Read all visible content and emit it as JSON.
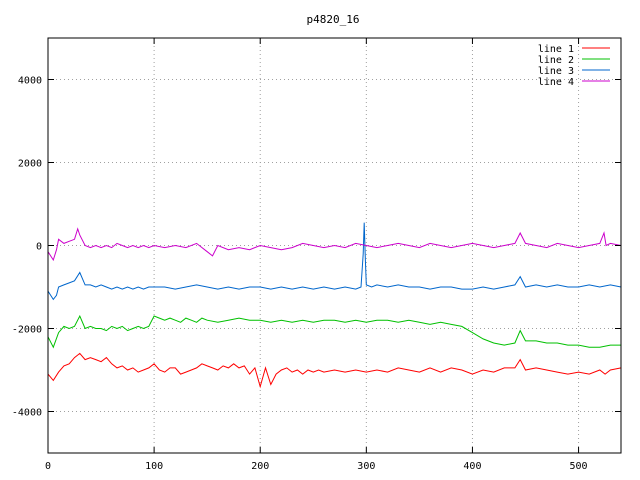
{
  "chart_data": {
    "type": "line",
    "title": "p4820_16",
    "xlabel": "",
    "ylabel": "",
    "xlim": [
      0,
      540
    ],
    "ylim": [
      -5000,
      5000
    ],
    "xticks": [
      0,
      100,
      200,
      300,
      400,
      500
    ],
    "yticks": [
      -4000,
      -2000,
      0,
      2000,
      4000
    ],
    "xtick_labels": [
      "0",
      "100",
      "200",
      "300",
      "400",
      "500"
    ],
    "ytick_labels": [
      "-4000",
      "-2000",
      "0",
      "2000",
      "4000"
    ],
    "grid": true,
    "legend": "top-right",
    "series": [
      {
        "name": "line 1",
        "color": "#ff0000",
        "points": [
          [
            0,
            -3100
          ],
          [
            5,
            -3250
          ],
          [
            10,
            -3050
          ],
          [
            15,
            -2900
          ],
          [
            20,
            -2850
          ],
          [
            25,
            -2700
          ],
          [
            30,
            -2600
          ],
          [
            35,
            -2750
          ],
          [
            40,
            -2700
          ],
          [
            45,
            -2750
          ],
          [
            50,
            -2800
          ],
          [
            55,
            -2700
          ],
          [
            60,
            -2850
          ],
          [
            65,
            -2950
          ],
          [
            70,
            -2900
          ],
          [
            75,
            -3000
          ],
          [
            80,
            -2950
          ],
          [
            85,
            -3050
          ],
          [
            90,
            -3000
          ],
          [
            95,
            -2950
          ],
          [
            100,
            -2850
          ],
          [
            105,
            -3000
          ],
          [
            110,
            -3050
          ],
          [
            115,
            -2950
          ],
          [
            120,
            -2950
          ],
          [
            125,
            -3100
          ],
          [
            130,
            -3050
          ],
          [
            135,
            -3000
          ],
          [
            140,
            -2950
          ],
          [
            145,
            -2850
          ],
          [
            150,
            -2900
          ],
          [
            155,
            -2950
          ],
          [
            160,
            -3000
          ],
          [
            165,
            -2900
          ],
          [
            170,
            -2950
          ],
          [
            175,
            -2850
          ],
          [
            180,
            -2950
          ],
          [
            185,
            -2900
          ],
          [
            190,
            -3100
          ],
          [
            195,
            -2950
          ],
          [
            200,
            -3400
          ],
          [
            205,
            -2950
          ],
          [
            210,
            -3350
          ],
          [
            215,
            -3100
          ],
          [
            220,
            -3000
          ],
          [
            225,
            -2950
          ],
          [
            230,
            -3050
          ],
          [
            235,
            -3000
          ],
          [
            240,
            -3100
          ],
          [
            245,
            -3000
          ],
          [
            250,
            -3050
          ],
          [
            255,
            -3000
          ],
          [
            260,
            -3050
          ],
          [
            270,
            -3000
          ],
          [
            280,
            -3050
          ],
          [
            290,
            -3000
          ],
          [
            300,
            -3050
          ],
          [
            310,
            -3000
          ],
          [
            320,
            -3050
          ],
          [
            330,
            -2950
          ],
          [
            340,
            -3000
          ],
          [
            350,
            -3050
          ],
          [
            360,
            -2950
          ],
          [
            370,
            -3050
          ],
          [
            380,
            -2950
          ],
          [
            390,
            -3000
          ],
          [
            400,
            -3100
          ],
          [
            410,
            -3000
          ],
          [
            420,
            -3050
          ],
          [
            430,
            -2950
          ],
          [
            440,
            -2950
          ],
          [
            445,
            -2750
          ],
          [
            450,
            -3000
          ],
          [
            460,
            -2950
          ],
          [
            470,
            -3000
          ],
          [
            480,
            -3050
          ],
          [
            490,
            -3100
          ],
          [
            500,
            -3050
          ],
          [
            510,
            -3100
          ],
          [
            520,
            -3000
          ],
          [
            525,
            -3100
          ],
          [
            530,
            -3000
          ],
          [
            540,
            -2950
          ]
        ]
      },
      {
        "name": "line 2",
        "color": "#00c000",
        "points": [
          [
            0,
            -2200
          ],
          [
            5,
            -2450
          ],
          [
            10,
            -2100
          ],
          [
            15,
            -1950
          ],
          [
            20,
            -2000
          ],
          [
            25,
            -1950
          ],
          [
            30,
            -1700
          ],
          [
            35,
            -2000
          ],
          [
            40,
            -1950
          ],
          [
            45,
            -2000
          ],
          [
            50,
            -2000
          ],
          [
            55,
            -2050
          ],
          [
            60,
            -1950
          ],
          [
            65,
            -2000
          ],
          [
            70,
            -1950
          ],
          [
            75,
            -2050
          ],
          [
            80,
            -2000
          ],
          [
            85,
            -1950
          ],
          [
            90,
            -2000
          ],
          [
            95,
            -1950
          ],
          [
            100,
            -1700
          ],
          [
            105,
            -1750
          ],
          [
            110,
            -1800
          ],
          [
            115,
            -1750
          ],
          [
            120,
            -1800
          ],
          [
            125,
            -1850
          ],
          [
            130,
            -1750
          ],
          [
            135,
            -1800
          ],
          [
            140,
            -1850
          ],
          [
            145,
            -1750
          ],
          [
            150,
            -1800
          ],
          [
            160,
            -1850
          ],
          [
            170,
            -1800
          ],
          [
            180,
            -1750
          ],
          [
            190,
            -1800
          ],
          [
            200,
            -1800
          ],
          [
            210,
            -1850
          ],
          [
            220,
            -1800
          ],
          [
            230,
            -1850
          ],
          [
            240,
            -1800
          ],
          [
            250,
            -1850
          ],
          [
            260,
            -1800
          ],
          [
            270,
            -1800
          ],
          [
            280,
            -1850
          ],
          [
            290,
            -1800
          ],
          [
            300,
            -1850
          ],
          [
            310,
            -1800
          ],
          [
            320,
            -1800
          ],
          [
            330,
            -1850
          ],
          [
            340,
            -1800
          ],
          [
            350,
            -1850
          ],
          [
            360,
            -1900
          ],
          [
            370,
            -1850
          ],
          [
            380,
            -1900
          ],
          [
            390,
            -1950
          ],
          [
            400,
            -2100
          ],
          [
            410,
            -2250
          ],
          [
            420,
            -2350
          ],
          [
            430,
            -2400
          ],
          [
            440,
            -2350
          ],
          [
            445,
            -2050
          ],
          [
            450,
            -2300
          ],
          [
            460,
            -2300
          ],
          [
            470,
            -2350
          ],
          [
            480,
            -2350
          ],
          [
            490,
            -2400
          ],
          [
            500,
            -2400
          ],
          [
            510,
            -2450
          ],
          [
            520,
            -2450
          ],
          [
            530,
            -2400
          ],
          [
            540,
            -2400
          ]
        ]
      },
      {
        "name": "line 3",
        "color": "#0066cc",
        "points": [
          [
            0,
            -1100
          ],
          [
            5,
            -1300
          ],
          [
            8,
            -1200
          ],
          [
            10,
            -1000
          ],
          [
            15,
            -950
          ],
          [
            20,
            -900
          ],
          [
            25,
            -850
          ],
          [
            30,
            -650
          ],
          [
            35,
            -950
          ],
          [
            40,
            -950
          ],
          [
            45,
            -1000
          ],
          [
            50,
            -950
          ],
          [
            55,
            -1000
          ],
          [
            60,
            -1050
          ],
          [
            65,
            -1000
          ],
          [
            70,
            -1050
          ],
          [
            75,
            -1000
          ],
          [
            80,
            -1050
          ],
          [
            85,
            -1000
          ],
          [
            90,
            -1050
          ],
          [
            95,
            -1000
          ],
          [
            100,
            -1000
          ],
          [
            110,
            -1000
          ],
          [
            120,
            -1050
          ],
          [
            130,
            -1000
          ],
          [
            140,
            -950
          ],
          [
            150,
            -1000
          ],
          [
            160,
            -1050
          ],
          [
            170,
            -1000
          ],
          [
            180,
            -1050
          ],
          [
            190,
            -1000
          ],
          [
            200,
            -1000
          ],
          [
            210,
            -1050
          ],
          [
            220,
            -1000
          ],
          [
            230,
            -1050
          ],
          [
            240,
            -1000
          ],
          [
            250,
            -1050
          ],
          [
            260,
            -1000
          ],
          [
            270,
            -1050
          ],
          [
            280,
            -1000
          ],
          [
            290,
            -1050
          ],
          [
            295,
            -1000
          ],
          [
            297,
            -200
          ],
          [
            298,
            550
          ],
          [
            299,
            -300
          ],
          [
            300,
            -950
          ],
          [
            305,
            -1000
          ],
          [
            310,
            -950
          ],
          [
            320,
            -1000
          ],
          [
            330,
            -950
          ],
          [
            340,
            -1000
          ],
          [
            350,
            -1000
          ],
          [
            360,
            -1050
          ],
          [
            370,
            -1000
          ],
          [
            380,
            -1000
          ],
          [
            390,
            -1050
          ],
          [
            400,
            -1050
          ],
          [
            410,
            -1000
          ],
          [
            420,
            -1050
          ],
          [
            430,
            -1000
          ],
          [
            440,
            -950
          ],
          [
            445,
            -750
          ],
          [
            450,
            -1000
          ],
          [
            460,
            -950
          ],
          [
            470,
            -1000
          ],
          [
            480,
            -950
          ],
          [
            490,
            -1000
          ],
          [
            500,
            -1000
          ],
          [
            510,
            -950
          ],
          [
            520,
            -1000
          ],
          [
            530,
            -950
          ],
          [
            540,
            -1000
          ]
        ]
      },
      {
        "name": "line 4",
        "color": "#cc00cc",
        "points": [
          [
            0,
            -150
          ],
          [
            5,
            -350
          ],
          [
            8,
            -100
          ],
          [
            10,
            150
          ],
          [
            15,
            50
          ],
          [
            20,
            100
          ],
          [
            25,
            150
          ],
          [
            28,
            400
          ],
          [
            30,
            250
          ],
          [
            35,
            0
          ],
          [
            40,
            -50
          ],
          [
            45,
            0
          ],
          [
            50,
            -50
          ],
          [
            55,
            0
          ],
          [
            60,
            -50
          ],
          [
            65,
            50
          ],
          [
            70,
            0
          ],
          [
            75,
            -50
          ],
          [
            80,
            0
          ],
          [
            85,
            -50
          ],
          [
            90,
            0
          ],
          [
            95,
            -50
          ],
          [
            100,
            0
          ],
          [
            110,
            -50
          ],
          [
            120,
            0
          ],
          [
            130,
            -50
          ],
          [
            140,
            50
          ],
          [
            150,
            -150
          ],
          [
            155,
            -250
          ],
          [
            160,
            0
          ],
          [
            170,
            -100
          ],
          [
            180,
            -50
          ],
          [
            190,
            -100
          ],
          [
            200,
            0
          ],
          [
            210,
            -50
          ],
          [
            220,
            -100
          ],
          [
            230,
            -50
          ],
          [
            240,
            50
          ],
          [
            250,
            0
          ],
          [
            260,
            -50
          ],
          [
            270,
            0
          ],
          [
            280,
            -50
          ],
          [
            290,
            50
          ],
          [
            300,
            0
          ],
          [
            310,
            -50
          ],
          [
            320,
            0
          ],
          [
            330,
            50
          ],
          [
            340,
            0
          ],
          [
            350,
            -50
          ],
          [
            360,
            50
          ],
          [
            370,
            0
          ],
          [
            380,
            -50
          ],
          [
            390,
            0
          ],
          [
            400,
            50
          ],
          [
            410,
            0
          ],
          [
            420,
            -50
          ],
          [
            430,
            0
          ],
          [
            440,
            50
          ],
          [
            445,
            300
          ],
          [
            450,
            50
          ],
          [
            460,
            0
          ],
          [
            470,
            -50
          ],
          [
            480,
            50
          ],
          [
            490,
            0
          ],
          [
            500,
            -50
          ],
          [
            510,
            0
          ],
          [
            520,
            50
          ],
          [
            524,
            300
          ],
          [
            526,
            0
          ],
          [
            530,
            50
          ],
          [
            540,
            0
          ]
        ]
      }
    ]
  }
}
